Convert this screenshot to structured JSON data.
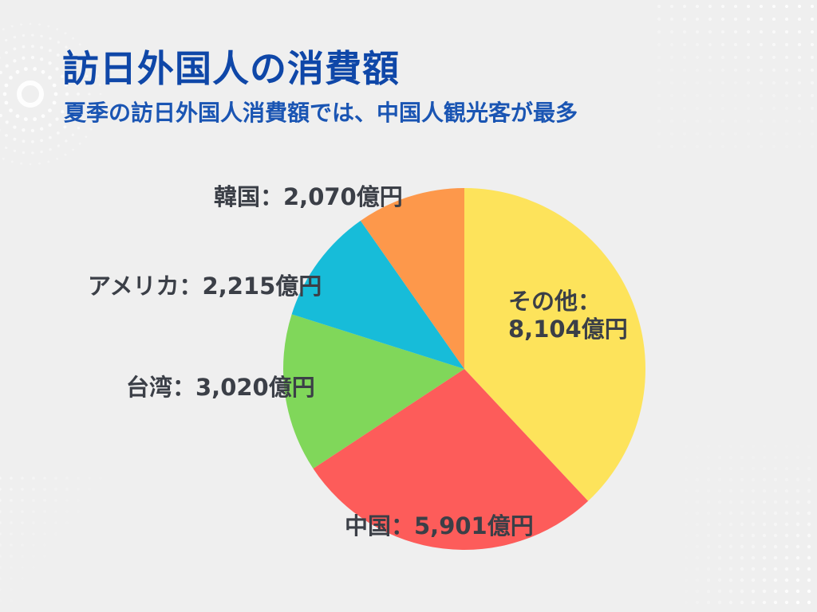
{
  "title": "訪日外国人の消費額",
  "subtitle": "夏季の訪日外国人消費額では、中国人観光客が最多",
  "colors": {
    "background": "#efefef",
    "title": "#0f47a8",
    "subtitle": "#1a55b3",
    "label": "#3b3f47",
    "decoration": "#ffffff"
  },
  "chart_data": {
    "type": "pie",
    "title": "訪日外国人の消費額",
    "subtitle": "夏季の訪日外国人消費額では、中国人観光客が最多",
    "unit": "億円",
    "start_angle_deg": 0,
    "direction": "clockwise",
    "legend": "none",
    "slices": [
      {
        "name": "その他",
        "value": 8104,
        "label": "その他：",
        "label2": "8,104億円",
        "color": "#fde35b"
      },
      {
        "name": "中国",
        "value": 5901,
        "label": "中国：5,901億円",
        "color": "#fd5c5a"
      },
      {
        "name": "台湾",
        "value": 3020,
        "label": "台湾：3,020億円",
        "color": "#80d75a"
      },
      {
        "name": "アメリカ",
        "value": 2215,
        "label": "アメリカ：2,215億円",
        "color": "#17bcd9"
      },
      {
        "name": "韓国",
        "value": 2070,
        "label": "韓国：2,070億円",
        "color": "#fd984b"
      }
    ]
  }
}
